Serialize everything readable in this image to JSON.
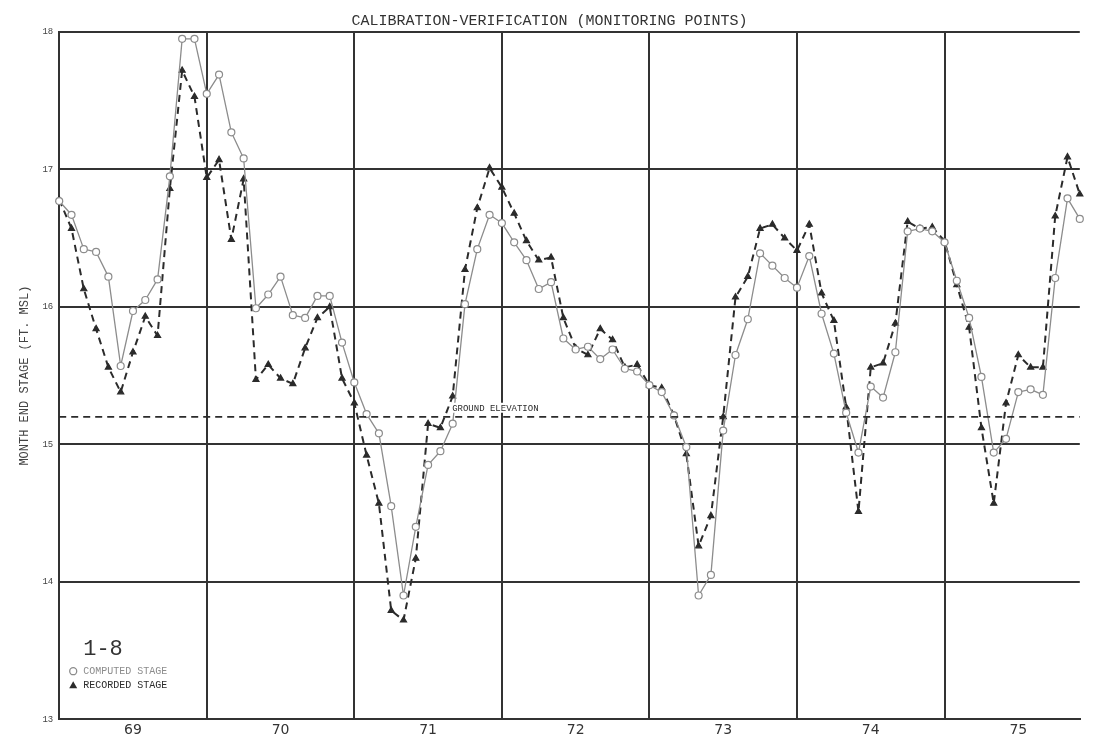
{
  "chart_data": {
    "type": "line",
    "title": "CALIBRATION-VERIFICATION (MONITORING POINTS)",
    "ylabel": "MONTH END STAGE (FT. MSL)",
    "categories": [
      null,
      null,
      null,
      null,
      null,
      null,
      "69",
      null,
      null,
      null,
      null,
      null,
      null,
      null,
      null,
      null,
      null,
      null,
      "70",
      null,
      null,
      null,
      null,
      null,
      null,
      null,
      null,
      null,
      null,
      null,
      "71",
      null,
      null,
      null,
      null,
      null,
      null,
      null,
      null,
      null,
      null,
      null,
      "72",
      null,
      null,
      null,
      null,
      null,
      null,
      null,
      null,
      null,
      null,
      null,
      "73",
      null,
      null,
      null,
      null,
      null,
      null,
      null,
      null,
      null,
      null,
      null,
      "74",
      null,
      null,
      null,
      null,
      null,
      null,
      null,
      null,
      null,
      null,
      null,
      "75",
      null,
      null,
      null,
      null,
      null
    ],
    "series": [
      {
        "name": "COMPUTED STAGE",
        "color": "#8c8c8c",
        "marker": "circle",
        "line_style": "solid",
        "values": [
          16.77,
          16.67,
          16.42,
          16.4,
          16.22,
          15.57,
          15.97,
          16.05,
          16.2,
          16.95,
          17.95,
          17.95,
          17.55,
          17.69,
          17.27,
          17.08,
          15.99,
          16.09,
          16.22,
          15.94,
          15.92,
          16.08,
          16.08,
          15.74,
          15.45,
          15.22,
          15.08,
          14.55,
          13.9,
          14.4,
          14.85,
          14.95,
          15.15,
          16.02,
          16.42,
          16.67,
          16.61,
          16.47,
          16.34,
          16.13,
          16.18,
          15.77,
          15.69,
          15.71,
          15.62,
          15.69,
          15.55,
          15.53,
          15.43,
          15.38,
          15.21,
          14.98,
          13.9,
          14.05,
          15.1,
          15.65,
          15.91,
          16.39,
          16.3,
          16.21,
          16.14,
          16.37,
          15.95,
          15.66,
          15.23,
          14.94,
          15.42,
          15.34,
          15.67,
          16.55,
          16.57,
          16.55,
          16.47,
          16.19,
          15.92,
          15.49,
          14.94,
          15.04,
          15.38,
          15.4,
          15.36,
          16.21,
          16.79,
          16.64
        ]
      },
      {
        "name": "RECORDED STAGE",
        "color": "#2b2b2b",
        "marker": "triangle",
        "line_style": "dashed",
        "values": [
          16.78,
          16.57,
          16.13,
          15.84,
          15.56,
          15.38,
          15.67,
          15.93,
          15.79,
          16.86,
          17.72,
          17.53,
          16.94,
          17.07,
          16.49,
          16.93,
          15.47,
          15.58,
          15.48,
          15.44,
          15.7,
          15.92,
          16,
          15.48,
          15.3,
          14.92,
          14.57,
          13.79,
          13.72,
          14.17,
          15.15,
          15.12,
          15.35,
          16.27,
          16.72,
          17.01,
          16.87,
          16.68,
          16.48,
          16.34,
          16.36,
          15.92,
          15.7,
          15.65,
          15.84,
          15.76,
          15.56,
          15.58,
          15.43,
          15.41,
          15.21,
          14.93,
          14.26,
          14.48,
          15.2,
          16.07,
          16.22,
          16.57,
          16.6,
          16.5,
          16.41,
          16.6,
          16.1,
          15.9,
          15.27,
          14.51,
          15.56,
          15.59,
          15.88,
          16.62,
          16.57,
          16.58,
          16.48,
          16.16,
          15.85,
          15.12,
          14.57,
          15.3,
          15.65,
          15.56,
          15.56,
          16.66,
          17.09,
          16.82
        ]
      }
    ],
    "ylim": [
      13,
      18
    ],
    "yticks": [
      13,
      14,
      15,
      16,
      17,
      18
    ],
    "ref_lines": [
      {
        "axis": "y",
        "value": 15.2,
        "label": "GROUND ELEVATION",
        "color": "#2b2b2b",
        "line_style": "dashed"
      }
    ],
    "annotations": [
      "1-8"
    ],
    "grid": true,
    "legend": "bottom left"
  }
}
